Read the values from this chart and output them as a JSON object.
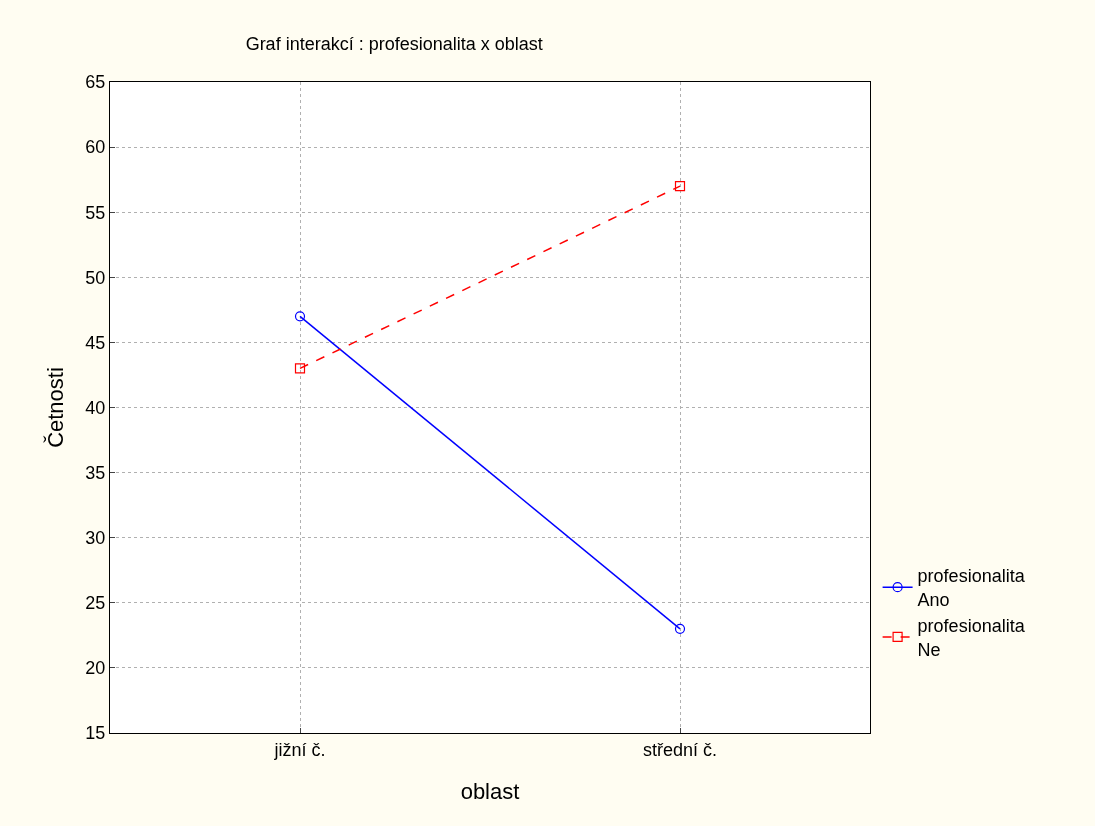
{
  "chart_data": {
    "type": "line",
    "title": "Graf interakcí : profesionalita x oblast",
    "xlabel": "oblast",
    "ylabel": "Četnosti",
    "categories": [
      "jižní č.",
      "střední č."
    ],
    "series": [
      {
        "name": "profesionalita\nAno",
        "color": "#0000ff",
        "values": [
          47,
          23
        ],
        "marker": "circle",
        "line_style": "solid"
      },
      {
        "name": "profesionalita\nNe",
        "color": "#ff0000",
        "values": [
          43,
          57
        ],
        "marker": "square",
        "line_style": "dashed"
      }
    ],
    "ylim": [
      15,
      65
    ],
    "yticks": [
      15,
      20,
      25,
      30,
      35,
      40,
      45,
      50,
      55,
      60,
      65
    ],
    "grid": true,
    "legend": "bottom right"
  }
}
